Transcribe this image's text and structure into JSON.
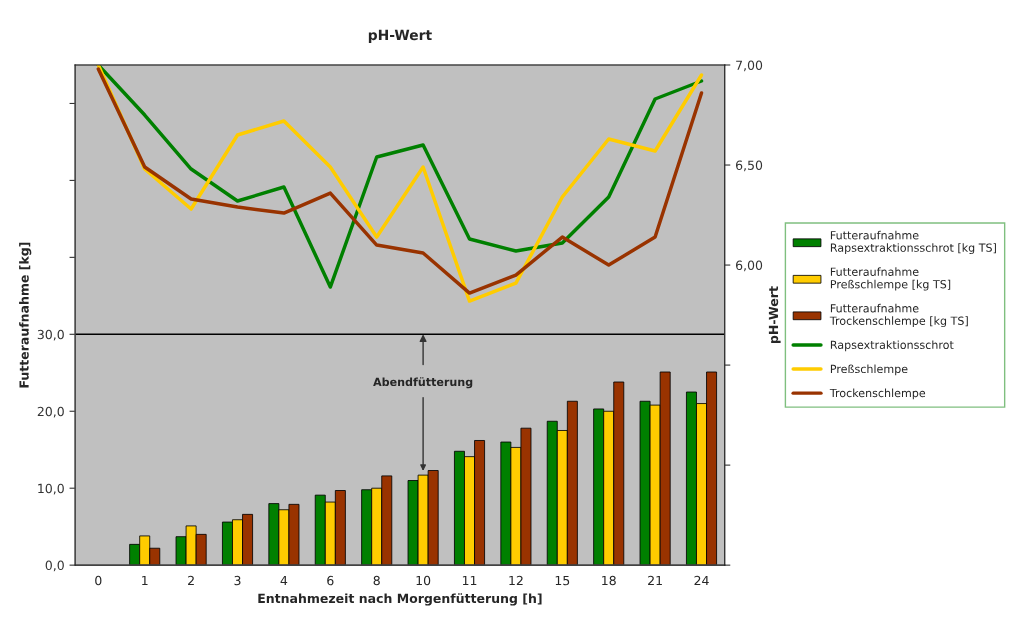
{
  "chart_data": {
    "type": "bar",
    "title": "pH-Wert",
    "xlabel": "Entnahmezeit nach Morgenfütterung [h]",
    "ylabel": "Futteraufnahme [kg]",
    "y2label": "pH-Wert",
    "categories": [
      "0",
      "1",
      "2",
      "3",
      "4",
      "6",
      "8",
      "10",
      "11",
      "12",
      "15",
      "18",
      "21",
      "24"
    ],
    "series": [
      {
        "name": "Futteraufnahme Rapsextraktionsschrot [kg TS]",
        "color": "#008000",
        "values": [
          null,
          2.7,
          3.7,
          5.6,
          8.0,
          9.1,
          9.8,
          11.0,
          14.8,
          16.0,
          18.7,
          20.3,
          21.3,
          22.5
        ]
      },
      {
        "name": "Futteraufnahme Preßschlempe [kg TS]",
        "color": "#ffcc00",
        "values": [
          null,
          3.8,
          5.1,
          5.9,
          7.2,
          8.2,
          10.0,
          11.7,
          14.1,
          15.3,
          17.5,
          20.0,
          20.8,
          21.0
        ]
      },
      {
        "name": "Futteraufnahme Trockenschlempe [kg TS]",
        "color": "#993300",
        "values": [
          null,
          2.2,
          4.0,
          6.6,
          7.9,
          9.7,
          11.6,
          12.3,
          16.2,
          17.8,
          21.3,
          23.8,
          25.1,
          25.1
        ]
      },
      {
        "name": "Rapsextraktionsschrot",
        "type": "line",
        "axis": "y2",
        "color": "#008000",
        "values": [
          7.0,
          6.75,
          6.48,
          6.32,
          6.39,
          5.89,
          6.54,
          6.6,
          6.13,
          6.07,
          6.11,
          6.34,
          6.83,
          6.92
        ]
      },
      {
        "name": "Preßschlempe",
        "type": "line",
        "axis": "y2",
        "color": "#ffcc00",
        "values": [
          7.0,
          6.48,
          6.28,
          6.65,
          6.72,
          6.49,
          6.14,
          6.49,
          5.82,
          5.91,
          6.34,
          6.63,
          6.57,
          6.95
        ]
      },
      {
        "name": "Trockenschlempe",
        "type": "line",
        "axis": "y2",
        "color": "#993300",
        "values": [
          6.98,
          6.49,
          6.33,
          6.29,
          6.26,
          6.36,
          6.1,
          6.06,
          5.86,
          5.95,
          6.14,
          6.0,
          6.14,
          6.86
        ]
      }
    ],
    "ylim": [
      0,
      65
    ],
    "yticks": [
      {
        "value": 0,
        "label": "0,0"
      },
      {
        "value": 10,
        "label": "10,0"
      },
      {
        "value": 20,
        "label": "20,0"
      },
      {
        "value": 30,
        "label": "30,0"
      },
      {
        "value": 40,
        "label": null
      },
      {
        "value": 50,
        "label": null
      },
      {
        "value": 60,
        "label": null
      }
    ],
    "y2lim": [
      4.5,
      7.0
    ],
    "y2ticks": [
      {
        "value": 4.5,
        "label": null
      },
      {
        "value": 5.0,
        "label": null
      },
      {
        "value": 5.5,
        "label": null
      },
      {
        "value": 6.0,
        "label": "6,00"
      },
      {
        "value": 6.5,
        "label": "6,50"
      },
      {
        "value": 7.0,
        "label": "7,00"
      }
    ],
    "ref_lines": [
      {
        "axis": "y",
        "value": 30,
        "color": "#000000"
      }
    ],
    "annotations": [
      {
        "text": "Abendfütterung",
        "x": "10",
        "y": 11.7
      }
    ],
    "grid": false,
    "legend": "right",
    "marker": "none",
    "line_style": "solid"
  }
}
